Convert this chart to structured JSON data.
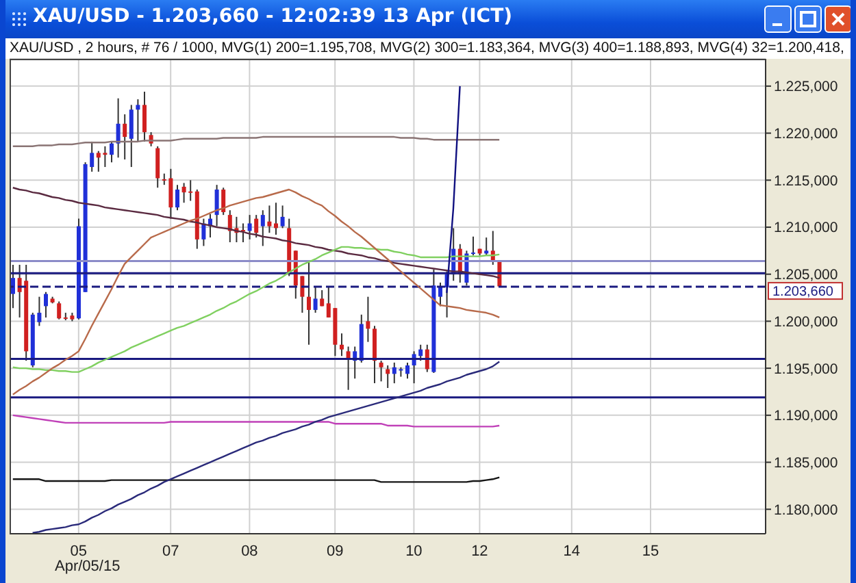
{
  "chart_data": {
    "type": "candlestick",
    "title": "XAU/USD - 1.203,660 - 12:02:39  13 Apr (ICT)",
    "subtitle": "XAU/USD , 2 hours, # 76 / 1000, MVG(1) 200=1.195,708, MVG(2) 300=1.183,364, MVG(3) 400=1.188,893, MVG(4) 32=1.200,418,",
    "annotations": [
      "Apr/05/15"
    ],
    "grid": true,
    "ylim": [
      1177.4,
      1227.9
    ],
    "yticks": [
      {
        "value": 1180,
        "label": "1.180,000"
      },
      {
        "value": 1185,
        "label": "1.185,000"
      },
      {
        "value": 1190,
        "label": "1.190,000"
      },
      {
        "value": 1195,
        "label": "1.195,000"
      },
      {
        "value": 1200,
        "label": "1.200,000"
      },
      {
        "value": 1205,
        "label": "1.205,000"
      },
      {
        "value": 1210,
        "label": "1.210,000"
      },
      {
        "value": 1215,
        "label": "1.215,000"
      },
      {
        "value": 1220,
        "label": "1.220,000"
      },
      {
        "value": 1225,
        "label": "1.225,000"
      }
    ],
    "categories": [
      null,
      null,
      null,
      null,
      null,
      null,
      null,
      null,
      null,
      null,
      "05",
      null,
      null,
      null,
      null,
      null,
      null,
      null,
      null,
      null,
      null,
      null,
      null,
      null,
      "07",
      null,
      null,
      null,
      null,
      null,
      null,
      null,
      null,
      null,
      null,
      null,
      "08",
      null,
      null,
      null,
      null,
      null,
      null,
      null,
      null,
      null,
      null,
      null,
      null,
      "09",
      null,
      null,
      null,
      null,
      null,
      null,
      null,
      null,
      null,
      null,
      null,
      "10",
      null,
      null,
      null,
      null,
      null,
      null,
      null,
      null,
      null,
      "12",
      null,
      null,
      null,
      null,
      null,
      null,
      null,
      null,
      null,
      null,
      null,
      null,
      null,
      "14",
      null,
      null,
      null,
      null,
      null,
      null,
      null,
      null,
      null,
      null,
      null,
      "15",
      null,
      null,
      null,
      null,
      null,
      null,
      null,
      null,
      null,
      null,
      null,
      null,
      null,
      null,
      null,
      null,
      null
    ],
    "ohlc": [
      [
        1202.9,
        1206.0,
        1201.4,
        1204.6
      ],
      [
        1204.6,
        1206.0,
        1200.4,
        1203.1
      ],
      [
        1204.3,
        1206.0,
        1195.8,
        1196.8
      ],
      [
        1195.3,
        1200.9,
        1195.1,
        1200.7
      ],
      [
        1199.9,
        1202.6,
        1199.5,
        1200.9
      ],
      [
        1201.6,
        1203.1,
        1200.4,
        1202.9
      ],
      [
        1202.4,
        1202.6,
        1201.9,
        1202.0
      ],
      [
        1201.9,
        1202.1,
        1200.2,
        1200.3
      ],
      [
        1200.4,
        1200.9,
        1200.1,
        1200.3
      ],
      [
        1200.6,
        1200.9,
        1200.0,
        1200.2
      ],
      [
        1200.3,
        1210.9,
        1200.2,
        1210.1
      ],
      [
        1203.1,
        1216.9,
        1203.1,
        1216.7
      ],
      [
        1216.4,
        1219.1,
        1215.9,
        1217.9
      ],
      [
        1217.9,
        1218.1,
        1215.9,
        1217.4
      ],
      [
        1217.9,
        1218.6,
        1216.4,
        1217.7
      ],
      [
        1217.7,
        1219.1,
        1216.9,
        1218.9
      ],
      [
        1218.9,
        1223.7,
        1217.4,
        1221.0
      ],
      [
        1221.0,
        1222.0,
        1217.2,
        1219.6
      ],
      [
        1219.4,
        1223.0,
        1216.4,
        1222.5
      ],
      [
        1222.5,
        1223.6,
        1219.1,
        1223.0
      ],
      [
        1223.0,
        1224.4,
        1219.1,
        1220.1
      ],
      [
        1219.8,
        1220.1,
        1218.6,
        1218.9
      ],
      [
        1218.4,
        1218.6,
        1214.2,
        1215.2
      ],
      [
        1215.1,
        1215.7,
        1214.5,
        1215.0
      ],
      [
        1215.2,
        1216.2,
        1210.9,
        1212.1
      ],
      [
        1212.1,
        1214.5,
        1211.8,
        1214.0
      ],
      [
        1214.3,
        1214.7,
        1212.6,
        1213.7
      ],
      [
        1213.8,
        1215.0,
        1212.8,
        1213.7
      ],
      [
        1213.8,
        1214.0,
        1207.7,
        1208.7
      ],
      [
        1208.7,
        1210.9,
        1208.0,
        1210.4
      ],
      [
        1210.1,
        1211.4,
        1208.9,
        1210.9
      ],
      [
        1211.3,
        1214.5,
        1210.1,
        1214.0
      ],
      [
        1214.0,
        1214.2,
        1211.3,
        1211.6
      ],
      [
        1211.3,
        1211.8,
        1208.4,
        1209.6
      ],
      [
        1209.9,
        1211.1,
        1208.4,
        1209.4
      ],
      [
        1209.7,
        1210.4,
        1208.4,
        1209.6
      ],
      [
        1209.6,
        1211.3,
        1208.7,
        1210.4
      ],
      [
        1210.9,
        1211.3,
        1208.9,
        1209.4
      ],
      [
        1210.1,
        1211.8,
        1208.0,
        1211.3
      ],
      [
        1210.6,
        1212.3,
        1209.4,
        1210.1
      ],
      [
        1210.4,
        1212.6,
        1209.2,
        1209.9
      ],
      [
        1210.1,
        1212.3,
        1209.9,
        1211.1
      ],
      [
        1209.9,
        1210.9,
        1204.8,
        1205.0
      ],
      [
        1207.5,
        1207.5,
        1202.4,
        1203.8
      ],
      [
        1204.8,
        1204.8,
        1200.9,
        1202.6
      ],
      [
        1202.6,
        1206.5,
        1197.5,
        1201.2
      ],
      [
        1201.2,
        1203.6,
        1200.9,
        1202.4
      ],
      [
        1202.4,
        1203.3,
        1201.6,
        1201.6
      ],
      [
        1201.9,
        1203.6,
        1200.4,
        1200.4
      ],
      [
        1201.4,
        1201.4,
        1196.3,
        1197.5
      ],
      [
        1197.5,
        1198.7,
        1196.3,
        1197.0
      ],
      [
        1196.8,
        1197.3,
        1192.7,
        1196.1
      ],
      [
        1195.8,
        1197.3,
        1193.9,
        1196.8
      ],
      [
        1195.8,
        1200.7,
        1195.6,
        1199.7
      ],
      [
        1200.0,
        1202.6,
        1197.8,
        1199.2
      ],
      [
        1199.2,
        1199.5,
        1193.4,
        1195.8
      ],
      [
        1195.6,
        1195.8,
        1193.6,
        1195.1
      ],
      [
        1194.9,
        1195.3,
        1192.9,
        1194.4
      ],
      [
        1194.4,
        1195.6,
        1193.4,
        1195.1
      ],
      [
        1194.8,
        1195.1,
        1194.1,
        1194.9
      ],
      [
        1194.4,
        1195.6,
        1193.9,
        1195.3
      ],
      [
        1195.3,
        1196.8,
        1193.4,
        1196.5
      ],
      [
        1196.3,
        1197.5,
        1195.8,
        1197.0
      ],
      [
        1197.0,
        1197.5,
        1194.6,
        1194.9
      ],
      [
        1194.6,
        1205.5,
        1194.5,
        1203.8
      ],
      [
        1202.6,
        1204.1,
        1201.6,
        1203.6
      ],
      [
        1203.6,
        1205.3,
        1200.4,
        1205.0
      ],
      [
        1205.0,
        1209.9,
        1204.3,
        1207.7
      ],
      [
        1207.7,
        1208.2,
        1204.1,
        1205.0
      ],
      [
        1204.1,
        1207.5,
        1203.8,
        1207.2
      ],
      [
        1207.2,
        1209.0,
        1207.0,
        1207.3
      ],
      [
        1207.7,
        1207.7,
        1207.0,
        1207.2
      ],
      [
        1207.2,
        1208.9,
        1207.0,
        1207.5
      ],
      [
        1207.5,
        1209.6,
        1206.0,
        1206.3
      ],
      [
        1206.3,
        1206.3,
        1203.6,
        1203.7
      ],
      null,
      null,
      null,
      null,
      null,
      null,
      null,
      null,
      null,
      null,
      null,
      null,
      null,
      null,
      null,
      null,
      null,
      null,
      null,
      null,
      null,
      null,
      null,
      null,
      null,
      null,
      null,
      null,
      null,
      null,
      null,
      null,
      null,
      null,
      null,
      null,
      null,
      null,
      null,
      null
    ],
    "colors": [
      "#2030d8",
      "#d02020",
      "#d02020",
      "#2030d8",
      "#2030d8",
      "#2030d8",
      "#d02020",
      "#d02020",
      "#d02020",
      "#d02020",
      "#2030d8",
      "#2030d8",
      "#2030d8",
      "#d02020",
      "#d02020",
      "#2030d8",
      "#2030d8",
      "#d02020",
      "#2030d8",
      "#2030d8",
      "#d02020",
      "#d02020",
      "#d02020",
      "#d02020",
      "#d02020",
      "#2030d8",
      "#d02020",
      "#d02020",
      "#d02020",
      "#2030d8",
      "#2030d8",
      "#2030d8",
      "#d02020",
      "#d02020",
      "#d02020",
      "#d02020",
      "#2030d8",
      "#d02020",
      "#2030d8",
      "#d02020",
      "#d02020",
      "#2030d8",
      "#d02020",
      "#d02020",
      "#d02020",
      "#d02020",
      "#2030d8",
      "#d02020",
      "#d02020",
      "#d02020",
      "#d02020",
      "#d02020",
      "#2030d8",
      "#2030d8",
      "#d02020",
      "#d02020",
      "#d02020",
      "#d02020",
      "#2030d8",
      "#2030d8",
      "#2030d8",
      "#2030d8",
      "#2030d8",
      "#d02020",
      "#2030d8",
      "#2030d8",
      "#2030d8",
      "#2030d8",
      "#d02020",
      "#2030d8",
      "#2030d8",
      "#d02020",
      "#2030d8",
      "#d02020",
      "#d02020",
      null,
      null,
      null,
      null,
      null,
      null,
      null,
      null,
      null,
      null,
      null,
      null,
      null,
      null,
      null,
      null,
      null,
      null,
      null,
      null,
      null,
      null,
      null,
      null,
      null,
      null,
      null,
      null,
      null,
      null,
      null,
      null,
      null,
      null,
      null,
      null,
      null,
      null,
      null,
      null
    ],
    "series": [
      {
        "type": "line",
        "color": "#8a7474",
        "values": [
          1218.6,
          1218.6,
          1218.6,
          1218.6,
          1218.7,
          1218.7,
          1218.7,
          1218.8,
          1218.8,
          1218.8,
          1218.9,
          1219.0,
          1219.0,
          1219.0,
          1219.0,
          1219.1,
          1219.1,
          1219.1,
          1219.1,
          1219.1,
          1219.2,
          1219.2,
          1219.2,
          1219.2,
          1219.2,
          1219.3,
          1219.4,
          1219.4,
          1219.4,
          1219.4,
          1219.4,
          1219.4,
          1219.5,
          1219.5,
          1219.5,
          1219.5,
          1219.5,
          1219.5,
          1219.6,
          1219.6,
          1219.6,
          1219.6,
          1219.6,
          1219.6,
          1219.6,
          1219.6,
          1219.6,
          1219.6,
          1219.6,
          1219.6,
          1219.6,
          1219.6,
          1219.6,
          1219.6,
          1219.6,
          1219.6,
          1219.6,
          1219.6,
          1219.6,
          1219.5,
          1219.5,
          1219.5,
          1219.4,
          1219.4,
          1219.3,
          1219.3,
          1219.3,
          1219.3,
          1219.3,
          1219.3,
          1219.3,
          1219.3,
          1219.3,
          1219.3,
          1219.3,
          null,
          null,
          null,
          null,
          null,
          null,
          null,
          null,
          null,
          null,
          null,
          null,
          null,
          null,
          null,
          null,
          null,
          null,
          null,
          null,
          null,
          null,
          null,
          null,
          null,
          null,
          null,
          null,
          null,
          null,
          null,
          null,
          null,
          null,
          null,
          null,
          null,
          null,
          null,
          null
        ]
      },
      {
        "type": "line",
        "color": "#5a2a40",
        "values": [
          1214.2,
          1214.0,
          1213.9,
          1213.7,
          1213.6,
          1213.4,
          1213.2,
          1213.1,
          1212.9,
          1212.8,
          1212.6,
          1212.5,
          1212.4,
          1212.3,
          1212.1,
          1212.0,
          1211.9,
          1211.8,
          1211.7,
          1211.6,
          1211.5,
          1211.4,
          1211.3,
          1211.1,
          1211.0,
          1210.9,
          1210.8,
          1210.6,
          1210.5,
          1210.3,
          1210.2,
          1210.0,
          1209.9,
          1209.8,
          1209.6,
          1209.5,
          1209.3,
          1209.2,
          1209.0,
          1208.9,
          1208.8,
          1208.6,
          1208.5,
          1208.3,
          1208.2,
          1208.1,
          1207.9,
          1207.8,
          1207.6,
          1207.5,
          1207.4,
          1207.2,
          1207.1,
          1207.0,
          1206.8,
          1206.7,
          1206.5,
          1206.4,
          1206.2,
          1206.1,
          1206.0,
          1205.9,
          1205.8,
          1205.7,
          1205.6,
          1205.5,
          1205.4,
          1205.3,
          1205.3,
          1205.2,
          1205.1,
          1205.0,
          1204.9,
          1204.8,
          1204.6,
          null,
          null,
          null,
          null,
          null,
          null,
          null,
          null,
          null,
          null,
          null,
          null,
          null,
          null,
          null,
          null,
          null,
          null,
          null,
          null,
          null,
          null,
          null,
          null,
          null,
          null,
          null,
          null,
          null,
          null,
          null,
          null,
          null,
          null,
          null,
          null,
          null,
          null,
          null,
          null
        ]
      },
      {
        "type": "line",
        "color": "#80d060",
        "values": [
          1195.1,
          1195.0,
          1195.0,
          1194.9,
          1194.9,
          1194.8,
          1194.8,
          1194.7,
          1194.7,
          1194.6,
          1194.6,
          1194.9,
          1195.2,
          1195.6,
          1195.9,
          1196.2,
          1196.5,
          1196.8,
          1197.2,
          1197.5,
          1197.8,
          1198.1,
          1198.4,
          1198.7,
          1199.0,
          1199.3,
          1199.5,
          1199.8,
          1200.1,
          1200.4,
          1200.7,
          1201.1,
          1201.4,
          1201.8,
          1202.1,
          1202.5,
          1202.9,
          1203.2,
          1203.6,
          1204.0,
          1204.3,
          1204.7,
          1205.2,
          1205.6,
          1206.0,
          1206.3,
          1206.6,
          1207.0,
          1207.3,
          1207.6,
          1207.9,
          1207.9,
          1207.8,
          1207.8,
          1207.7,
          1207.7,
          1207.6,
          1207.6,
          1207.4,
          1207.3,
          1207.1,
          1207.0,
          1206.8,
          1206.8,
          1206.8,
          1206.8,
          1206.8,
          1206.9,
          1206.9,
          1206.9,
          1206.9,
          1206.9,
          1207.0,
          1207.0,
          1207.1,
          null,
          null,
          null,
          null,
          null,
          null,
          null,
          null,
          null,
          null,
          null,
          null,
          null,
          null,
          null,
          null,
          null,
          null,
          null,
          null,
          null,
          null,
          null,
          null,
          null,
          null,
          null,
          null,
          null,
          null,
          null,
          null,
          null,
          null,
          null,
          null,
          null,
          null,
          null,
          null
        ]
      },
      {
        "type": "line",
        "color": "#b86a4a",
        "values": [
          1192.2,
          1192.7,
          1193.1,
          1193.6,
          1194.0,
          1194.5,
          1195.0,
          1195.4,
          1195.9,
          1196.3,
          1196.8,
          1198.1,
          1199.5,
          1200.8,
          1202.1,
          1203.4,
          1204.8,
          1206.1,
          1206.8,
          1207.5,
          1208.2,
          1208.9,
          1209.2,
          1209.5,
          1209.8,
          1210.1,
          1210.4,
          1210.7,
          1210.9,
          1211.2,
          1211.5,
          1211.8,
          1212.0,
          1212.3,
          1212.5,
          1212.7,
          1212.9,
          1213.1,
          1213.2,
          1213.4,
          1213.6,
          1213.8,
          1214.0,
          1213.7,
          1213.3,
          1213.0,
          1212.6,
          1212.3,
          1211.7,
          1211.2,
          1210.6,
          1210.1,
          1209.5,
          1209.0,
          1208.4,
          1207.8,
          1207.2,
          1206.6,
          1205.9,
          1205.3,
          1204.7,
          1204.1,
          1203.5,
          1202.9,
          1202.3,
          1201.7,
          1201.6,
          1201.5,
          1201.4,
          1201.2,
          1201.1,
          1201.0,
          1200.9,
          1200.7,
          1200.4,
          null,
          null,
          null,
          null,
          null,
          null,
          null,
          null,
          null,
          null,
          null,
          null,
          null,
          null,
          null,
          null,
          null,
          null,
          null,
          null,
          null,
          null,
          null,
          null,
          null,
          null,
          null,
          null,
          null,
          null,
          null,
          null,
          null,
          null,
          null,
          null,
          null,
          null,
          null,
          null
        ]
      },
      {
        "type": "line",
        "color": "#c040b8",
        "values": [
          1190.0,
          1189.9,
          1189.8,
          1189.7,
          1189.6,
          1189.5,
          1189.4,
          1189.3,
          1189.2,
          1189.2,
          1189.2,
          1189.2,
          1189.2,
          1189.2,
          1189.2,
          1189.2,
          1189.2,
          1189.2,
          1189.2,
          1189.2,
          1189.2,
          1189.2,
          1189.2,
          1189.2,
          1189.3,
          1189.3,
          1189.3,
          1189.3,
          1189.3,
          1189.3,
          1189.3,
          1189.3,
          1189.3,
          1189.3,
          1189.3,
          1189.3,
          1189.3,
          1189.3,
          1189.3,
          1189.3,
          1189.3,
          1189.3,
          1189.3,
          1189.3,
          1189.3,
          1189.3,
          1189.3,
          1189.3,
          1189.3,
          1189.1,
          1189.1,
          1189.1,
          1189.1,
          1189.1,
          1189.1,
          1189.1,
          1189.1,
          1188.9,
          1188.9,
          1188.9,
          1188.9,
          1188.8,
          1188.8,
          1188.8,
          1188.8,
          1188.8,
          1188.8,
          1188.8,
          1188.8,
          1188.8,
          1188.8,
          1188.8,
          1188.8,
          1188.8,
          1188.9,
          null,
          null,
          null,
          null,
          null,
          null,
          null,
          null,
          null,
          null,
          null,
          null,
          null,
          null,
          null,
          null,
          null,
          null,
          null,
          null,
          null,
          null,
          null,
          null,
          null,
          null,
          null,
          null,
          null,
          null,
          null,
          null,
          null,
          null,
          null,
          null,
          null,
          null,
          null,
          null
        ]
      },
      {
        "type": "line",
        "color": "#151515",
        "values": [
          1183.2,
          1183.2,
          1183.2,
          1183.2,
          1183.2,
          1183.0,
          1183.0,
          1183.0,
          1183.0,
          1183.0,
          1183.0,
          1183.0,
          1183.0,
          1183.0,
          1183.0,
          1183.1,
          1183.1,
          1183.1,
          1183.1,
          1183.1,
          1183.1,
          1183.1,
          1183.1,
          1183.1,
          1183.1,
          1183.1,
          1183.1,
          1183.1,
          1183.1,
          1183.1,
          1183.1,
          1183.1,
          1183.1,
          1183.1,
          1183.1,
          1183.1,
          1183.1,
          1183.1,
          1183.1,
          1183.1,
          1183.1,
          1183.1,
          1183.1,
          1183.1,
          1183.1,
          1183.1,
          1183.1,
          1183.1,
          1183.1,
          1183.1,
          1183.1,
          1183.1,
          1183.1,
          1183.1,
          1183.1,
          1183.1,
          1182.9,
          1182.9,
          1182.9,
          1182.9,
          1182.9,
          1182.9,
          1182.9,
          1182.9,
          1182.9,
          1182.9,
          1182.9,
          1182.9,
          1182.9,
          1182.9,
          1183.0,
          1183.0,
          1183.1,
          1183.2,
          1183.4,
          null,
          null,
          null,
          null,
          null,
          null,
          null,
          null,
          null,
          null,
          null,
          null,
          null,
          null,
          null,
          null,
          null,
          null,
          null,
          null,
          null,
          null,
          null,
          null,
          null,
          null,
          null,
          null,
          null,
          null,
          null,
          null,
          null,
          null,
          null,
          null,
          null,
          null,
          null,
          null
        ]
      },
      {
        "type": "line",
        "color": "#2a2a7a",
        "values": [
          null,
          null,
          null,
          1177.5,
          1177.6,
          1177.8,
          1177.9,
          1178.0,
          1178.1,
          1178.3,
          1178.4,
          1178.7,
          1179.1,
          1179.4,
          1179.8,
          1180.1,
          1180.5,
          1180.8,
          1181.1,
          1181.5,
          1181.8,
          1182.2,
          1182.5,
          1182.9,
          1183.2,
          1183.5,
          1183.8,
          1184.1,
          1184.4,
          1184.7,
          1185.0,
          1185.3,
          1185.6,
          1185.9,
          1186.2,
          1186.5,
          1186.8,
          1187.1,
          1187.3,
          1187.6,
          1187.8,
          1188.1,
          1188.3,
          1188.5,
          1188.8,
          1189.0,
          1189.3,
          1189.5,
          1189.8,
          1190.0,
          1190.2,
          1190.4,
          1190.6,
          1190.8,
          1191.0,
          1191.2,
          1191.4,
          1191.6,
          1191.8,
          1192.0,
          1192.2,
          1192.4,
          1192.6,
          1192.9,
          1193.1,
          1193.3,
          1193.6,
          1193.8,
          1194.0,
          1194.3,
          1194.5,
          1194.7,
          1194.9,
          1195.2,
          1195.7,
          null,
          null,
          null,
          null,
          null,
          null,
          null,
          null,
          null,
          null,
          null,
          null,
          null,
          null,
          null,
          null,
          null,
          null,
          null,
          null,
          null,
          null,
          null,
          null,
          null,
          null,
          null,
          null,
          null,
          null,
          null,
          null,
          null,
          null,
          null,
          null,
          null,
          null,
          null,
          null
        ]
      },
      {
        "type": "line",
        "color": "#101080",
        "values": [
          null,
          null,
          null,
          null,
          null,
          null,
          null,
          null,
          null,
          null,
          null,
          null,
          null,
          null,
          null,
          null,
          null,
          null,
          null,
          null,
          null,
          null,
          null,
          null,
          null,
          null,
          null,
          null,
          null,
          null,
          null,
          null,
          null,
          null,
          null,
          null,
          null,
          null,
          null,
          null,
          null,
          null,
          null,
          null,
          null,
          null,
          null,
          null,
          null,
          null,
          null,
          null,
          null,
          null,
          null,
          null,
          null,
          null,
          null,
          null,
          null,
          null,
          null,
          null,
          null,
          null,
          1203.0,
          1212.0,
          1225.0,
          null,
          null,
          null,
          null,
          null,
          null,
          null,
          null,
          null,
          null,
          null,
          null,
          null,
          null,
          null,
          null,
          null,
          null,
          null,
          null,
          null,
          null,
          null,
          null,
          null,
          null,
          null,
          null,
          null,
          null,
          null,
          null,
          null,
          null,
          null,
          null,
          null,
          null,
          null,
          null,
          null,
          null,
          null,
          null,
          null,
          null
        ]
      }
    ],
    "ref_lines": [
      {
        "axis": "y",
        "value": 1206.4,
        "color": "#8c8cc8",
        "line_style": "solid"
      },
      {
        "axis": "y",
        "value": 1205.1,
        "color": "#1a1a80",
        "line_style": "solid"
      },
      {
        "axis": "y",
        "value": 1203.66,
        "color": "#1a1a80",
        "line_style": "dashed",
        "label": "1.203,660"
      },
      {
        "axis": "y",
        "value": 1196.0,
        "color": "#1a1a80",
        "line_style": "solid"
      },
      {
        "axis": "y",
        "value": 1191.9,
        "color": "#1a1a80",
        "line_style": "solid"
      }
    ]
  }
}
